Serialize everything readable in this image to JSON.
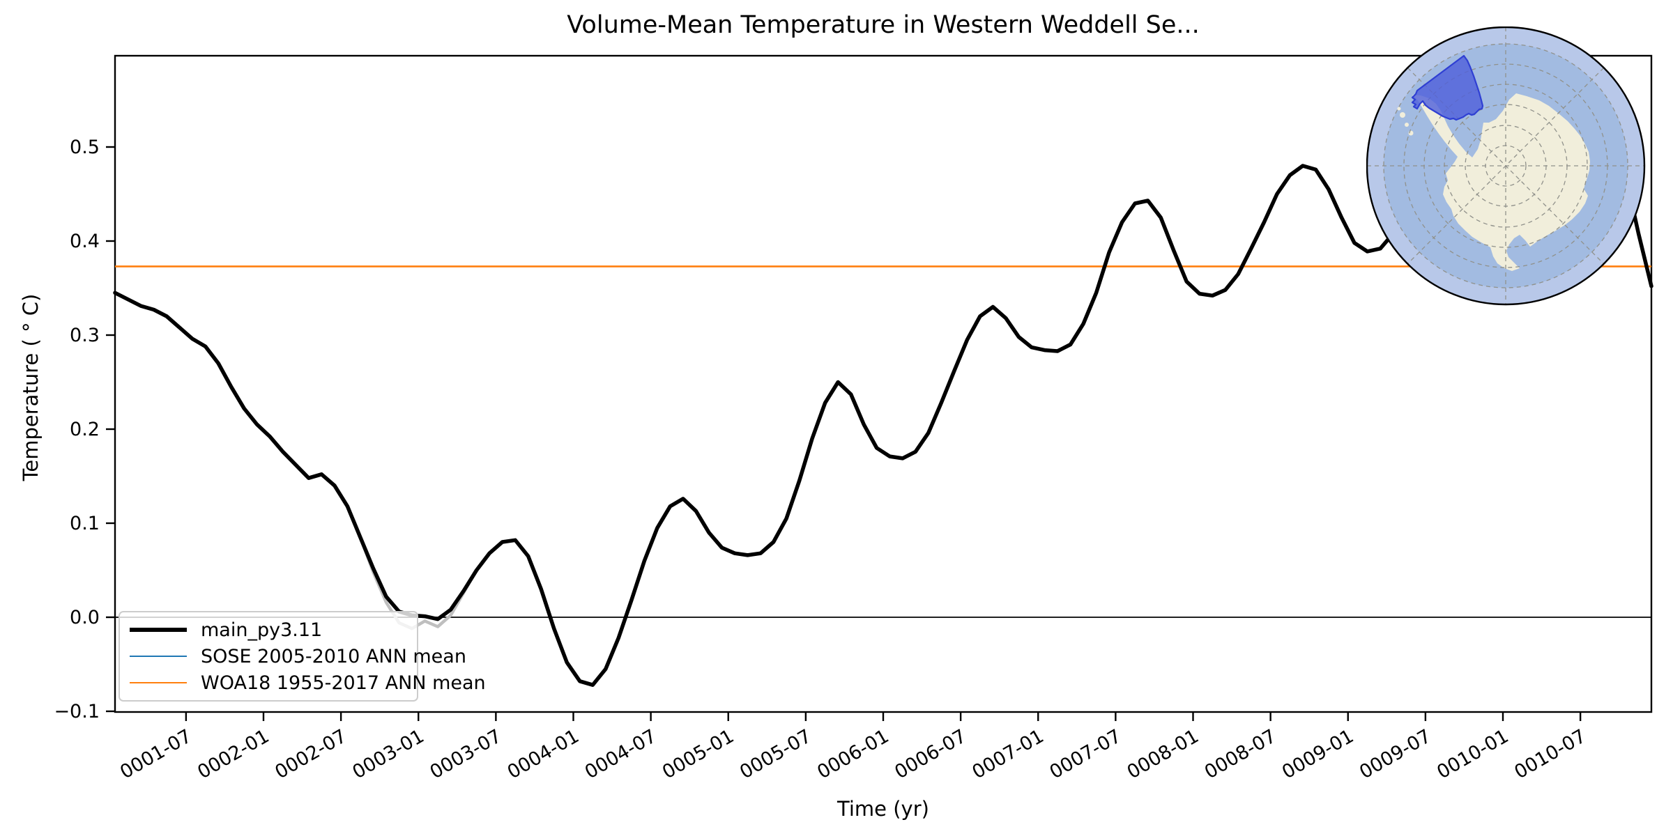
{
  "title": "Volume-Mean Temperature in Western Weddell Se...",
  "axes": {
    "xlabel": "Time (yr)",
    "ylabel": "Temperature ( ° C)"
  },
  "legend": {
    "items": [
      {
        "label": "main_py3.11",
        "color": "#000000",
        "linewidth": 6
      },
      {
        "label": "SOSE 2005-2010 ANN mean",
        "color": "#1f77b4",
        "linewidth": 2.6
      },
      {
        "label": "WOA18 1955-2017 ANN mean",
        "color": "#ff7f0e",
        "linewidth": 2.6
      }
    ]
  },
  "chart_data": {
    "type": "line",
    "title": "Volume-Mean Temperature in Western Weddell Se...",
    "xlabel": "Time (yr)",
    "ylabel": "Temperature ( ° C)",
    "x_frequency": "monthly",
    "x_range": [
      "0001-01",
      "0010-12"
    ],
    "ylim": [
      -0.1,
      0.6
    ],
    "grid": false,
    "legend_position": "lower left",
    "zero_line": true,
    "x_tick_labels": [
      "0001-07",
      "0002-01",
      "0002-07",
      "0003-01",
      "0003-07",
      "0004-01",
      "0004-07",
      "0005-01",
      "0005-07",
      "0006-01",
      "0006-07",
      "0007-01",
      "0007-07",
      "0008-01",
      "0008-07",
      "0009-01",
      "0009-07",
      "0010-01",
      "0010-07"
    ],
    "y_ticks": {
      "values": [
        -0.1,
        0.0,
        0.1,
        0.2,
        0.3,
        0.4,
        0.5
      ],
      "labels": [
        "−0.1",
        "0.0",
        "0.1",
        "0.2",
        "0.3",
        "0.4",
        "0.5"
      ]
    },
    "series": [
      {
        "name": "main_py3.11",
        "color": "#000000",
        "linewidth": 5.5,
        "start_month": "0001-01",
        "values": [
          0.345,
          0.338,
          0.331,
          0.327,
          0.32,
          0.308,
          0.296,
          0.288,
          0.27,
          0.245,
          0.222,
          0.205,
          0.192,
          0.176,
          0.162,
          0.148,
          0.152,
          0.14,
          0.118,
          0.085,
          0.052,
          0.022,
          0.006,
          0.002,
          0.001,
          -0.002,
          0.008,
          0.028,
          0.05,
          0.068,
          0.08,
          0.082,
          0.065,
          0.03,
          -0.012,
          -0.048,
          -0.068,
          -0.072,
          -0.055,
          -0.022,
          0.018,
          0.06,
          0.095,
          0.118,
          0.126,
          0.113,
          0.09,
          0.074,
          0.068,
          0.066,
          0.068,
          0.08,
          0.105,
          0.145,
          0.19,
          0.228,
          0.25,
          0.237,
          0.205,
          0.18,
          0.171,
          0.169,
          0.176,
          0.196,
          0.228,
          0.262,
          0.295,
          0.32,
          0.33,
          0.318,
          0.298,
          0.287,
          0.284,
          0.283,
          0.29,
          0.312,
          0.345,
          0.388,
          0.42,
          0.44,
          0.443,
          0.425,
          0.39,
          0.357,
          0.344,
          0.342,
          0.348,
          0.365,
          0.392,
          0.42,
          0.45,
          0.47,
          0.48,
          0.476,
          0.455,
          0.425,
          0.398,
          0.389,
          0.392,
          0.408,
          0.432,
          0.462,
          0.495,
          0.525,
          0.548,
          0.556,
          0.54,
          0.51,
          0.478,
          0.462,
          0.47,
          0.492,
          0.52,
          0.545,
          0.558,
          0.545,
          0.52,
          0.47,
          0.408,
          0.352
        ]
      },
      {
        "name": "gray_overlap_segment",
        "color": "#bfbfbf",
        "linewidth": 4.5,
        "start_month": "0002-08",
        "values": [
          0.085,
          0.048,
          0.016,
          -0.006,
          -0.012,
          -0.004,
          -0.01,
          0.002,
          0.026,
          0.05
        ]
      }
    ],
    "reference_lines": [
      {
        "name": "SOSE 2005-2010 ANN mean",
        "color": "#1f77b4"
      },
      {
        "name": "WOA18 1955-2017 ANN mean",
        "color": "#ff7f0e",
        "value": 0.373
      }
    ]
  },
  "map": {
    "ocean_inner_color": "#a2bbe1",
    "ocean_outer_color": "#b8c8e9",
    "land_color": "#f1eedb",
    "rim_color": "#000000",
    "graticule_color": "#90918b",
    "region_fill": "#4f5fdb",
    "region_stroke": "#2f3fd3",
    "region_opacity": 0.8,
    "region_polygon": [
      [
        140,
        42
      ],
      [
        73,
        92
      ],
      [
        71,
        97
      ],
      [
        66,
        102
      ],
      [
        70,
        105
      ],
      [
        66,
        109
      ],
      [
        71,
        112
      ],
      [
        68,
        115
      ],
      [
        73,
        118
      ],
      [
        77,
        111
      ],
      [
        81,
        107
      ],
      [
        85,
        113
      ],
      [
        90,
        117
      ],
      [
        95,
        120
      ],
      [
        100,
        123
      ],
      [
        105,
        126
      ],
      [
        110,
        129
      ],
      [
        115,
        131
      ],
      [
        120,
        133
      ],
      [
        125,
        132
      ],
      [
        129,
        134
      ],
      [
        134,
        132
      ],
      [
        139,
        130
      ],
      [
        143,
        127
      ],
      [
        147,
        125
      ],
      [
        151,
        127
      ],
      [
        155,
        126
      ],
      [
        159,
        122
      ],
      [
        162,
        119
      ],
      [
        166,
        118
      ],
      [
        167,
        114
      ],
      [
        165,
        106
      ],
      [
        162,
        95
      ],
      [
        158,
        83
      ],
      [
        154,
        71
      ],
      [
        149,
        58
      ],
      [
        145,
        49
      ]
    ],
    "land_outline": [
      [
        66,
        98
      ],
      [
        74,
        106
      ],
      [
        80,
        116
      ],
      [
        87,
        128
      ],
      [
        95,
        141
      ],
      [
        104,
        154
      ],
      [
        113,
        166
      ],
      [
        122,
        177
      ],
      [
        131,
        187
      ],
      [
        127,
        194
      ],
      [
        121,
        202
      ],
      [
        114,
        211
      ],
      [
        117,
        221
      ],
      [
        112,
        230
      ],
      [
        110,
        241
      ],
      [
        115,
        252
      ],
      [
        122,
        262
      ],
      [
        125,
        272
      ],
      [
        132,
        283
      ],
      [
        142,
        293
      ],
      [
        152,
        302
      ],
      [
        165,
        310
      ],
      [
        178,
        317
      ],
      [
        182,
        330
      ],
      [
        188,
        340
      ],
      [
        198,
        347
      ],
      [
        209,
        351
      ],
      [
        220,
        347
      ],
      [
        213,
        340
      ],
      [
        204,
        331
      ],
      [
        201,
        322
      ],
      [
        205,
        313
      ],
      [
        212,
        304
      ],
      [
        220,
        299
      ],
      [
        228,
        307
      ],
      [
        235,
        316
      ],
      [
        246,
        308
      ],
      [
        259,
        300
      ],
      [
        272,
        293
      ],
      [
        285,
        285
      ],
      [
        295,
        277
      ],
      [
        306,
        266
      ],
      [
        314,
        254
      ],
      [
        318,
        243
      ],
      [
        312,
        233
      ],
      [
        316,
        220
      ],
      [
        320,
        207
      ],
      [
        321,
        194
      ],
      [
        319,
        180
      ],
      [
        314,
        169
      ],
      [
        307,
        157
      ],
      [
        299,
        147
      ],
      [
        289,
        136
      ],
      [
        276,
        125
      ],
      [
        262,
        114
      ],
      [
        248,
        106
      ],
      [
        230,
        100
      ],
      [
        215,
        96
      ],
      [
        205,
        105
      ],
      [
        196,
        121
      ],
      [
        186,
        133
      ],
      [
        176,
        138
      ],
      [
        168,
        138
      ],
      [
        166,
        150
      ],
      [
        164,
        163
      ],
      [
        160,
        176
      ],
      [
        152,
        188
      ],
      [
        143,
        180
      ],
      [
        133,
        168
      ],
      [
        124,
        155
      ],
      [
        117,
        143
      ],
      [
        112,
        132
      ],
      [
        107,
        121
      ],
      [
        100,
        111
      ],
      [
        90,
        103
      ],
      [
        78,
        99
      ]
    ],
    "islands": [
      [
        52,
        127,
        4
      ],
      [
        58,
        141,
        3
      ],
      [
        64,
        153,
        3.5
      ],
      [
        47,
        118,
        2.5
      ]
    ],
    "graticule_radii": [
      29,
      58,
      88,
      117,
      146,
      175
    ],
    "outer_ring_inner_radius": 175
  }
}
